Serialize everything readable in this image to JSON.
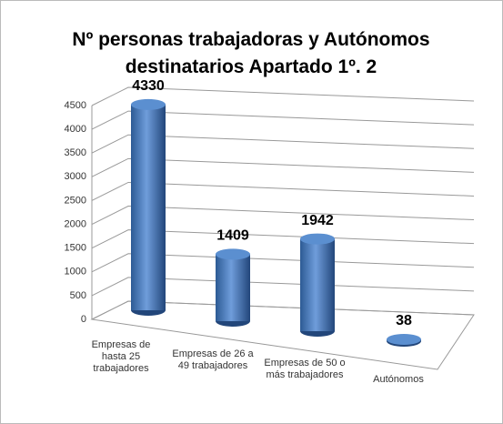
{
  "chart_data": {
    "type": "bar",
    "title": "Nº personas trabajadoras y Autónomos destinatarios Apartado 1º. 2",
    "categories": [
      "Empresas de hasta 25 trabajadores",
      "Empresas de 26 a 49 trabajadores",
      "Empresas de 50 o más trabajadores",
      "Autónomos"
    ],
    "values": [
      4330,
      1409,
      1942,
      38
    ],
    "color": "#4a7ebb",
    "ylim": [
      0,
      4500
    ],
    "yticks": [
      0,
      500,
      1000,
      1500,
      2000,
      2500,
      3000,
      3500,
      4000,
      4500
    ],
    "grid": true
  }
}
